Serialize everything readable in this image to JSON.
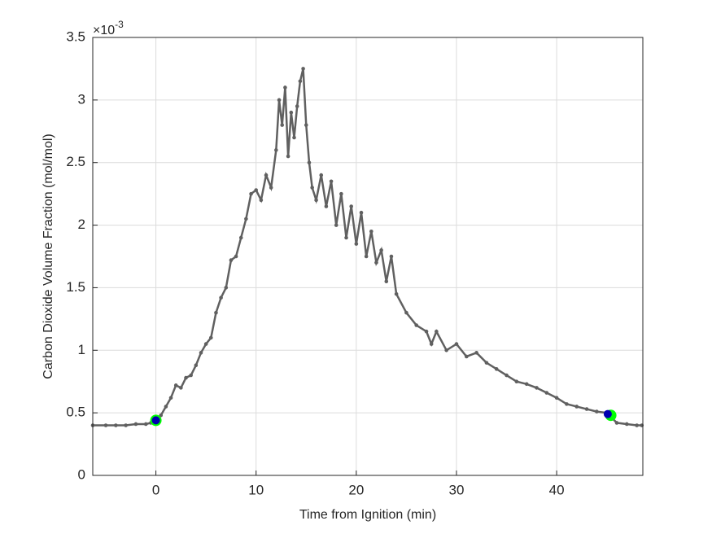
{
  "chart_data": {
    "type": "line",
    "x_label": "Time from Ignition (min)",
    "y_label": "Carbon Dioxide Volume Fraction (mol/mol)",
    "y_exponent": {
      "base": "×10",
      "power": "-3"
    },
    "xlim": [
      -6.3,
      48.6
    ],
    "ylim": [
      0,
      3.5
    ],
    "xticks": [
      0,
      10,
      20,
      30,
      40
    ],
    "yticks": [
      0,
      0.5,
      1,
      1.5,
      2,
      2.5,
      3,
      3.5
    ],
    "grid": true,
    "series": [
      {
        "color": "#606060",
        "x": [
          -6.3,
          -5,
          -4,
          -3,
          -2,
          -1,
          -0.5,
          0,
          0.5,
          1,
          1.5,
          2,
          2.5,
          3,
          3.5,
          4,
          4.5,
          5,
          5.5,
          6,
          6.5,
          7,
          7.5,
          8,
          8.5,
          9,
          9.5,
          10,
          10.5,
          11,
          11.5,
          12,
          12.3,
          12.6,
          12.9,
          13.2,
          13.5,
          13.8,
          14.1,
          14.4,
          14.7,
          15,
          15.3,
          15.6,
          16,
          16.5,
          17,
          17.5,
          18,
          18.5,
          19,
          19.5,
          20,
          20.5,
          21,
          21.5,
          22,
          22.5,
          23,
          23.5,
          24,
          25,
          26,
          27,
          27.5,
          28,
          29,
          30,
          31,
          32,
          33,
          34,
          35,
          36,
          37,
          38,
          39,
          40,
          41,
          42,
          43,
          44,
          45,
          45.5,
          46,
          47,
          48,
          48.5
        ],
        "values": [
          0.4,
          0.4,
          0.4,
          0.4,
          0.41,
          0.41,
          0.42,
          0.44,
          0.48,
          0.55,
          0.62,
          0.72,
          0.7,
          0.78,
          0.8,
          0.88,
          0.98,
          1.05,
          1.1,
          1.3,
          1.42,
          1.5,
          1.72,
          1.75,
          1.9,
          2.05,
          2.25,
          2.28,
          2.2,
          2.4,
          2.3,
          2.6,
          3.0,
          2.8,
          3.1,
          2.55,
          2.9,
          2.7,
          2.95,
          3.15,
          3.25,
          2.8,
          2.5,
          2.3,
          2.2,
          2.4,
          2.15,
          2.35,
          2.0,
          2.25,
          1.9,
          2.15,
          1.85,
          2.1,
          1.75,
          1.95,
          1.7,
          1.8,
          1.55,
          1.75,
          1.45,
          1.3,
          1.2,
          1.15,
          1.05,
          1.15,
          1.0,
          1.05,
          0.95,
          0.98,
          0.9,
          0.85,
          0.8,
          0.75,
          0.73,
          0.7,
          0.66,
          0.62,
          0.57,
          0.55,
          0.53,
          0.51,
          0.5,
          0.46,
          0.42,
          0.41,
          0.4,
          0.4
        ]
      }
    ],
    "markers": [
      {
        "x": 0,
        "y": 0.44,
        "color": "#00ff00",
        "size": 7
      },
      {
        "x": 45.4,
        "y": 0.48,
        "color": "#00ff00",
        "size": 7
      },
      {
        "x": 0,
        "y": 0.44,
        "color": "#0000b0",
        "size": 5
      },
      {
        "x": 45.1,
        "y": 0.49,
        "color": "#0000b0",
        "size": 5
      }
    ]
  }
}
